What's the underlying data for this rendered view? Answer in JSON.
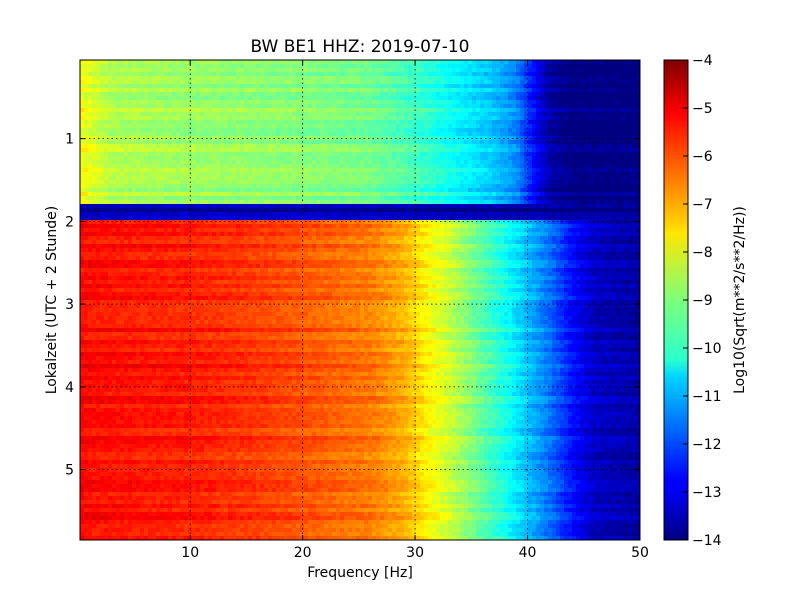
{
  "chart_data": {
    "type": "heatmap",
    "title": "BW BE1 HHZ: 2019-07-10",
    "xlabel": "Frequency [Hz]",
    "ylabel": "Lokalzeit (UTC + 2 Stunde)",
    "xlim": [
      0.2,
      50
    ],
    "ylim": [
      5.85,
      0.05
    ],
    "x_ticks": [
      10,
      20,
      30,
      40,
      50
    ],
    "y_ticks": [
      1,
      2,
      3,
      4,
      5
    ],
    "x_grid_ticks": [
      10,
      20,
      30,
      40
    ],
    "y_grid_ticks": [
      1,
      2,
      3,
      4,
      5
    ],
    "grid": true,
    "colormap": "jet",
    "colorbar": {
      "label": "Log10(Sqrt(m**2/s**2/Hz))",
      "min": -14,
      "max": -4,
      "ticks": [
        -4,
        -5,
        -6,
        -7,
        -8,
        -9,
        -10,
        -11,
        -12,
        -13,
        -14
      ]
    },
    "frequency_profiles": [
      {
        "time_range": [
          0.05,
          1.78
        ],
        "points": [
          [
            0.2,
            -7.8
          ],
          [
            1,
            -8.0
          ],
          [
            3,
            -8.5
          ],
          [
            10,
            -8.7
          ],
          [
            20,
            -8.9
          ],
          [
            26,
            -9.1
          ],
          [
            30,
            -9.6
          ],
          [
            34,
            -10.3
          ],
          [
            37,
            -10.8
          ],
          [
            39,
            -11.4
          ],
          [
            40,
            -12.2
          ],
          [
            41,
            -13.0
          ],
          [
            42,
            -13.6
          ],
          [
            44,
            -14
          ],
          [
            50,
            -14
          ]
        ]
      },
      {
        "time_range": [
          1.78,
          1.98
        ],
        "points": [
          [
            0.2,
            -13.6
          ],
          [
            10,
            -13.5
          ],
          [
            30,
            -13.6
          ],
          [
            50,
            -13.9
          ]
        ]
      },
      {
        "time_range": [
          1.98,
          5.85
        ],
        "points": [
          [
            0.2,
            -5.2
          ],
          [
            1,
            -5.3
          ],
          [
            5,
            -5.4
          ],
          [
            10,
            -5.5
          ],
          [
            15,
            -5.7
          ],
          [
            20,
            -6.0
          ],
          [
            26,
            -6.4
          ],
          [
            29,
            -6.9
          ],
          [
            31,
            -7.6
          ],
          [
            33,
            -8.2
          ],
          [
            36,
            -9.3
          ],
          [
            38,
            -10.0
          ],
          [
            40,
            -10.8
          ],
          [
            42,
            -11.6
          ],
          [
            44,
            -12.6
          ],
          [
            46,
            -13.3
          ],
          [
            50,
            -13.6
          ]
        ]
      }
    ]
  }
}
